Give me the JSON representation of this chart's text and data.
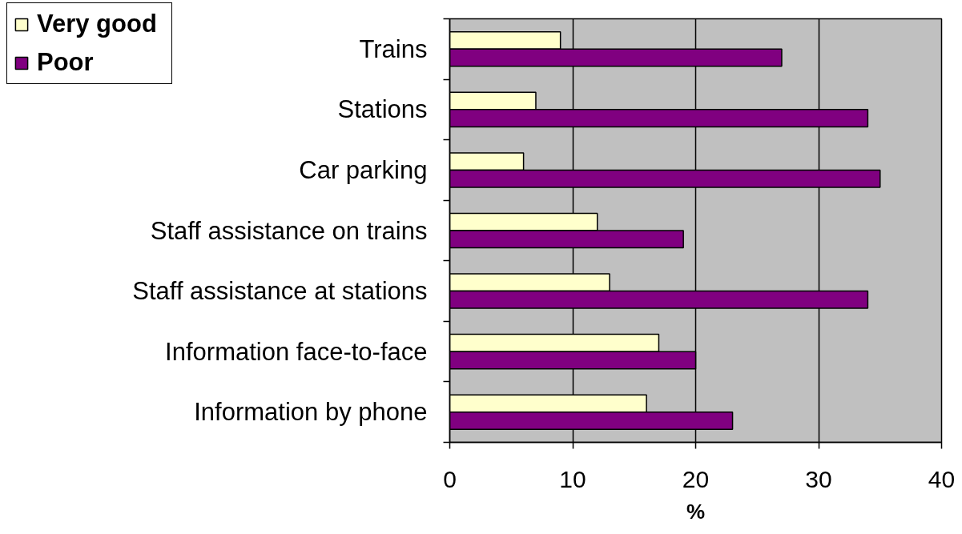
{
  "chart_data": {
    "type": "bar",
    "orientation": "horizontal",
    "categories": [
      "Trains",
      "Stations",
      "Car parking",
      "Staff assistance on trains",
      "Staff assistance at stations",
      "Information face-to-face",
      "Information by phone"
    ],
    "series": [
      {
        "name": "Very good",
        "color": "#ffffcc",
        "values": [
          9,
          7,
          6,
          12,
          13,
          17,
          16
        ]
      },
      {
        "name": "Poor",
        "color": "#800080",
        "values": [
          27,
          34,
          35,
          19,
          34,
          20,
          23
        ]
      }
    ],
    "xlabel": "%",
    "xlim": [
      0,
      40
    ],
    "xticks": [
      0,
      10,
      20,
      30,
      40
    ],
    "grid": "x",
    "legend": "top left"
  }
}
